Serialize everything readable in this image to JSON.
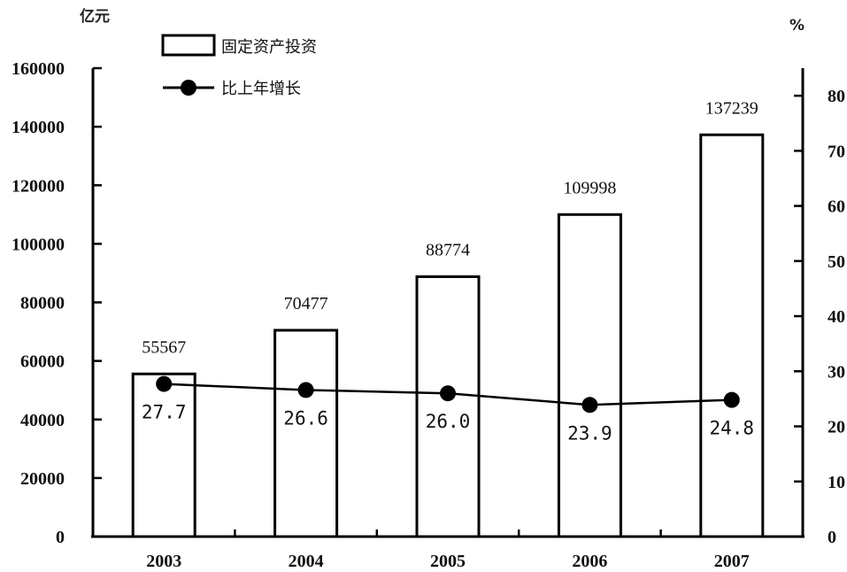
{
  "chart_data": {
    "type": "bar",
    "categories": [
      "2003",
      "2004",
      "2005",
      "2006",
      "2007"
    ],
    "series": [
      {
        "name": "固定资产投资",
        "type": "bar",
        "axis": "left",
        "values": [
          55567,
          70477,
          88774,
          109998,
          137239
        ]
      },
      {
        "name": "比上年增长",
        "type": "line",
        "axis": "right",
        "values": [
          27.7,
          26.6,
          26.0,
          23.9,
          24.8
        ]
      }
    ],
    "left_axis": {
      "unit": "亿元",
      "ylim": [
        0,
        160000
      ],
      "ticks": [
        "0",
        "20000",
        "40000",
        "60000",
        "80000",
        "100000",
        "120000",
        "140000",
        "160000"
      ]
    },
    "right_axis": {
      "unit": "%",
      "ylim": [
        0,
        85
      ],
      "ticks": [
        "0",
        "10",
        "20",
        "30",
        "40",
        "50",
        "60",
        "70",
        "80"
      ]
    },
    "bar_labels": [
      "55567",
      "70477",
      "88774",
      "109998",
      "137239"
    ],
    "line_labels": [
      "27.7",
      "26.6",
      "26.0",
      "23.9",
      "24.8"
    ],
    "legend": {
      "placement": "top-left",
      "items": [
        {
          "label": "固定资产投资",
          "marker": "bar"
        },
        {
          "label": "比上年增长",
          "marker": "line-dot"
        }
      ]
    },
    "grid": false
  }
}
